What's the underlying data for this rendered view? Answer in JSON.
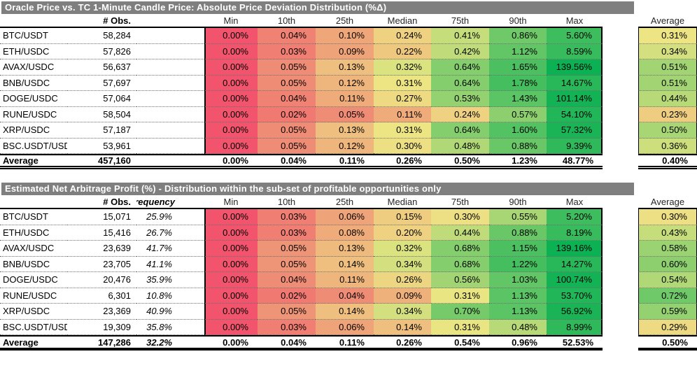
{
  "colors": {
    "title_bg": "#7F7F7F",
    "title_text": "#FFFFFF",
    "heat_low": "#F1546C",
    "heat_mid": "#EDE684",
    "heat_high": "#0CB153",
    "border": "#000000"
  },
  "chart_data": [
    {
      "type": "heatmap",
      "title": "Oracle Price vs. TC 1-Minute Candle Price: Absolute Price Deviation Distribution (%Δ)",
      "obs_header": "# Obs.",
      "freq_header": null,
      "dist_headers": [
        "Min",
        "10th",
        "25th",
        "Median",
        "75th",
        "90th",
        "Max"
      ],
      "average_header": "Average",
      "rows": [
        {
          "label": "BTC/USDT",
          "obs": "58,284",
          "dist": [
            "0.00%",
            "0.04%",
            "0.10%",
            "0.24%",
            "0.41%",
            "0.86%",
            "5.60%"
          ],
          "avg": "0.31%"
        },
        {
          "label": "ETH/USDC",
          "obs": "57,826",
          "dist": [
            "0.00%",
            "0.03%",
            "0.09%",
            "0.22%",
            "0.42%",
            "1.12%",
            "8.59%"
          ],
          "avg": "0.34%"
        },
        {
          "label": "AVAX/USDC",
          "obs": "56,637",
          "dist": [
            "0.00%",
            "0.05%",
            "0.13%",
            "0.32%",
            "0.64%",
            "1.65%",
            "139.56%"
          ],
          "avg": "0.51%"
        },
        {
          "label": "BNB/USDC",
          "obs": "57,697",
          "dist": [
            "0.00%",
            "0.05%",
            "0.12%",
            "0.31%",
            "0.64%",
            "1.78%",
            "14.67%"
          ],
          "avg": "0.51%"
        },
        {
          "label": "DOGE/USDC",
          "obs": "57,064",
          "dist": [
            "0.00%",
            "0.04%",
            "0.11%",
            "0.27%",
            "0.53%",
            "1.43%",
            "101.14%"
          ],
          "avg": "0.44%"
        },
        {
          "label": "RUNE/USDC",
          "obs": "58,504",
          "dist": [
            "0.00%",
            "0.02%",
            "0.05%",
            "0.11%",
            "0.24%",
            "0.57%",
            "54.10%"
          ],
          "avg": "0.23%"
        },
        {
          "label": "XRP/USDC",
          "obs": "57,187",
          "dist": [
            "0.00%",
            "0.05%",
            "0.13%",
            "0.31%",
            "0.64%",
            "1.60%",
            "57.32%"
          ],
          "avg": "0.50%"
        },
        {
          "label": "BSC.USDT/USDC",
          "obs": "53,961",
          "dist": [
            "0.00%",
            "0.05%",
            "0.12%",
            "0.30%",
            "0.48%",
            "0.88%",
            "9.39%"
          ],
          "avg": "0.36%"
        }
      ],
      "totals": {
        "label": "Average",
        "obs": "457,160",
        "freq": null,
        "dist": [
          "0.00%",
          "0.04%",
          "0.11%",
          "0.26%",
          "0.50%",
          "1.23%",
          "48.77%"
        ],
        "avg": "0.40%"
      }
    },
    {
      "type": "heatmap",
      "title": "Estimated Net Arbitrage Profit (%) - Distribution within the sub-set of profitable opportunities only",
      "obs_header": "# Obs.",
      "freq_header": "Frequency",
      "dist_headers": [
        "Min",
        "10th",
        "25th",
        "Median",
        "75th",
        "90th",
        "Max"
      ],
      "average_header": "Average",
      "rows": [
        {
          "label": "BTC/USDT",
          "obs": "15,071",
          "freq": "25.9%",
          "dist": [
            "0.00%",
            "0.03%",
            "0.06%",
            "0.15%",
            "0.30%",
            "0.55%",
            "5.20%"
          ],
          "avg": "0.30%"
        },
        {
          "label": "ETH/USDC",
          "obs": "15,416",
          "freq": "26.7%",
          "dist": [
            "0.00%",
            "0.03%",
            "0.08%",
            "0.20%",
            "0.44%",
            "0.88%",
            "8.19%"
          ],
          "avg": "0.43%"
        },
        {
          "label": "AVAX/USDC",
          "obs": "23,639",
          "freq": "41.7%",
          "dist": [
            "0.00%",
            "0.05%",
            "0.13%",
            "0.32%",
            "0.68%",
            "1.15%",
            "139.16%"
          ],
          "avg": "0.58%"
        },
        {
          "label": "BNB/USDC",
          "obs": "23,705",
          "freq": "41.1%",
          "dist": [
            "0.00%",
            "0.05%",
            "0.14%",
            "0.34%",
            "0.68%",
            "1.22%",
            "14.27%"
          ],
          "avg": "0.60%"
        },
        {
          "label": "DOGE/USDC",
          "obs": "20,476",
          "freq": "35.9%",
          "dist": [
            "0.00%",
            "0.04%",
            "0.11%",
            "0.26%",
            "0.56%",
            "1.03%",
            "100.74%"
          ],
          "avg": "0.54%"
        },
        {
          "label": "RUNE/USDC",
          "obs": "6,301",
          "freq": "10.8%",
          "dist": [
            "0.00%",
            "0.02%",
            "0.04%",
            "0.09%",
            "0.31%",
            "1.13%",
            "53.70%"
          ],
          "avg": "0.72%"
        },
        {
          "label": "XRP/USDC",
          "obs": "23,369",
          "freq": "40.9%",
          "dist": [
            "0.00%",
            "0.05%",
            "0.14%",
            "0.34%",
            "0.70%",
            "1.13%",
            "56.92%"
          ],
          "avg": "0.59%"
        },
        {
          "label": "BSC.USDT/USDC",
          "obs": "19,309",
          "freq": "35.8%",
          "dist": [
            "0.00%",
            "0.03%",
            "0.06%",
            "0.14%",
            "0.31%",
            "0.48%",
            "8.99%"
          ],
          "avg": "0.29%"
        }
      ],
      "totals": {
        "label": "Average",
        "obs": "147,286",
        "freq": "32.2%",
        "dist": [
          "0.00%",
          "0.04%",
          "0.11%",
          "0.26%",
          "0.54%",
          "0.96%",
          "52.53%"
        ],
        "avg": "0.50%"
      }
    }
  ]
}
